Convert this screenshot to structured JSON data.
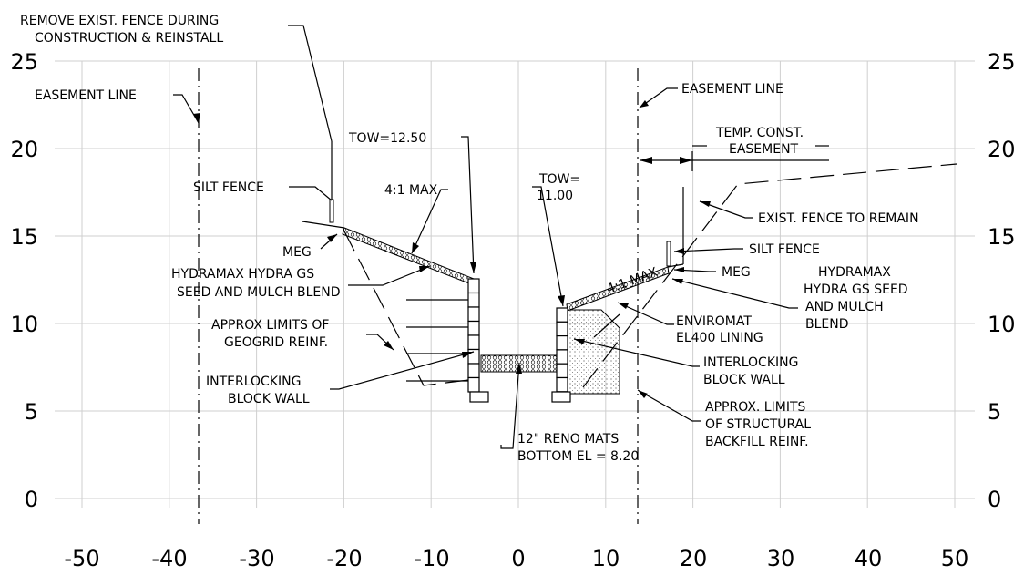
{
  "axes": {
    "x_ticks": [
      "-50",
      "-40",
      "-30",
      "-20",
      "-10",
      "0",
      "10",
      "20",
      "30",
      "40",
      "50"
    ],
    "y_ticks": [
      "0",
      "5",
      "10",
      "15",
      "20",
      "25"
    ],
    "xlim": [
      -50,
      50
    ],
    "ylim": [
      0,
      25
    ],
    "grid": true
  },
  "labels": {
    "remove_fence_1": "REMOVE EXIST. FENCE DURING",
    "remove_fence_2": "CONSTRUCTION & REINSTALL",
    "easement_left": "EASEMENT LINE",
    "easement_right": "EASEMENT LINE",
    "tow_left": "TOW=12.50",
    "tow_right_1": "TOW=",
    "tow_right_2": "11.00",
    "temp_const_1": "TEMP. CONST.",
    "temp_const_2": "EASEMENT",
    "silt_fence_left": "SILT FENCE",
    "slope_left": "4:1 MAX",
    "slope_right": "4:1 MAX",
    "exist_fence_remain": "EXIST. FENCE TO REMAIN",
    "silt_fence_right": "SILT FENCE",
    "meg_left": "MEG",
    "meg_right": "MEG",
    "hydramax_left_1": "HYDRAMAX HYDRA GS",
    "hydramax_left_2": "SEED AND MULCH BLEND",
    "hydramax_right_1": "HYDRAMAX",
    "hydramax_right_2": "HYDRA GS SEED",
    "hydramax_right_3": "AND MULCH",
    "hydramax_right_4": "BLEND",
    "geogrid_1": "APPROX LIMITS OF",
    "geogrid_2": "GEOGRID REINF.",
    "enviromat_1": "ENVIROMAT",
    "enviromat_2": "EL400 LINING",
    "block_wall_left_1": "INTERLOCKING",
    "block_wall_left_2": "BLOCK WALL",
    "block_wall_right_1": "INTERLOCKING",
    "block_wall_right_2": "BLOCK WALL",
    "backfill_1": "APPROX. LIMITS",
    "backfill_2": "OF STRUCTURAL",
    "backfill_3": "BACKFILL REINF.",
    "reno_1": "12\" RENO MATS",
    "reno_2": "BOTTOM EL = 8.20"
  }
}
